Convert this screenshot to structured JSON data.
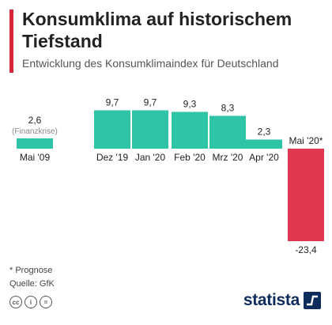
{
  "header": {
    "title": "Konsumklima auf historischem Tiefstand",
    "subtitle": "Entwicklung des Konsumklimaindex für Deutschland"
  },
  "chart_data": {
    "type": "bar",
    "title": "Konsumklima auf historischem Tiefstand",
    "subtitle": "Entwicklung des Konsumklimaindex für Deutschland",
    "categories": [
      "Mai '09",
      "Dez '19",
      "Jan '20",
      "Feb '20",
      "Mrz '20",
      "Apr '20",
      "Mai '20*"
    ],
    "values": [
      2.6,
      9.7,
      9.7,
      9.3,
      8.3,
      2.3,
      -23.4
    ],
    "value_labels": [
      "2,6",
      "9,7",
      "9,7",
      "9,3",
      "8,3",
      "2,3",
      "-23,4"
    ],
    "annotations": [
      {
        "category": "Mai '09",
        "text": "(Finanzkrise)"
      }
    ],
    "colors": {
      "positive": "#2ec4a5",
      "negative": "#e0384e"
    },
    "grid": false,
    "legend": "none"
  },
  "footnotes": {
    "note": "* Prognose",
    "source": "Quelle: GfK"
  },
  "license_icons": [
    "cc",
    "i",
    "="
  ],
  "brand": {
    "name": "statista",
    "icon": "statista-logo-icon",
    "color": "#0d2c5c"
  },
  "accent_color": "#d72638"
}
